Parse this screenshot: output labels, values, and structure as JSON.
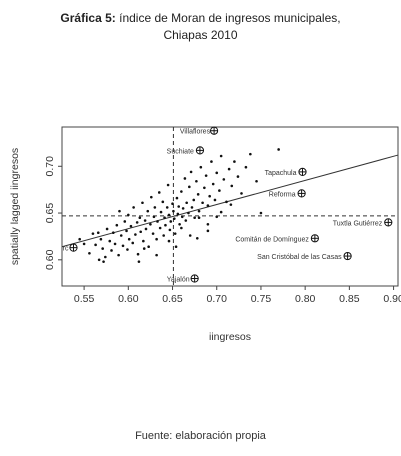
{
  "header": {
    "title_bold": "Gráfica 5:",
    "title_rest": " índice de Moran de ingresos municipales,",
    "title_line2": "Chiapas 2010"
  },
  "footer": {
    "source": "Fuente: elaboración propia"
  },
  "chart_data": {
    "type": "scatter",
    "xlabel": "iingresos",
    "ylabel": "spatially lagged iingresos",
    "xlim": [
      0.525,
      0.905
    ],
    "ylim": [
      0.572,
      0.742
    ],
    "x_ticks": [
      0.55,
      0.6,
      0.65,
      0.7,
      0.75,
      0.8,
      0.85,
      0.9
    ],
    "y_ticks": [
      0.6,
      0.65,
      0.7
    ],
    "x_tick_labels": [
      "0.55",
      "0.60",
      "0.65",
      "0.70",
      "0.75",
      "0.80",
      "0.85",
      "0.90"
    ],
    "y_tick_labels": [
      "0.60",
      "0.65",
      "0.70"
    ],
    "mean_x": 0.651,
    "mean_y": 0.647,
    "regression_line": {
      "x": [
        0.525,
        0.905
      ],
      "y": [
        0.614,
        0.712
      ]
    },
    "points": [
      [
        0.545,
        0.622
      ],
      [
        0.55,
        0.617
      ],
      [
        0.556,
        0.607
      ],
      [
        0.56,
        0.628
      ],
      [
        0.563,
        0.616
      ],
      [
        0.566,
        0.629
      ],
      [
        0.567,
        0.6
      ],
      [
        0.569,
        0.622
      ],
      [
        0.571,
        0.612
      ],
      [
        0.574,
        0.603
      ],
      [
        0.576,
        0.633
      ],
      [
        0.579,
        0.62
      ],
      [
        0.581,
        0.61
      ],
      [
        0.583,
        0.629
      ],
      [
        0.585,
        0.617
      ],
      [
        0.587,
        0.637
      ],
      [
        0.589,
        0.605
      ],
      [
        0.59,
        0.652
      ],
      [
        0.592,
        0.626
      ],
      [
        0.594,
        0.615
      ],
      [
        0.596,
        0.641
      ],
      [
        0.598,
        0.631
      ],
      [
        0.599,
        0.611
      ],
      [
        0.6,
        0.648
      ],
      [
        0.601,
        0.622
      ],
      [
        0.603,
        0.636
      ],
      [
        0.605,
        0.618
      ],
      [
        0.606,
        0.656
      ],
      [
        0.608,
        0.627
      ],
      [
        0.61,
        0.64
      ],
      [
        0.611,
        0.606
      ],
      [
        0.613,
        0.645
      ],
      [
        0.614,
        0.63
      ],
      [
        0.616,
        0.661
      ],
      [
        0.617,
        0.62
      ],
      [
        0.619,
        0.642
      ],
      [
        0.62,
        0.633
      ],
      [
        0.622,
        0.652
      ],
      [
        0.623,
        0.614
      ],
      [
        0.625,
        0.638
      ],
      [
        0.626,
        0.667
      ],
      [
        0.628,
        0.628
      ],
      [
        0.629,
        0.646
      ],
      [
        0.63,
        0.656
      ],
      [
        0.632,
        0.622
      ],
      [
        0.633,
        0.641
      ],
      [
        0.635,
        0.672
      ],
      [
        0.636,
        0.634
      ],
      [
        0.637,
        0.651
      ],
      [
        0.639,
        0.662
      ],
      [
        0.64,
        0.626
      ],
      [
        0.641,
        0.645
      ],
      [
        0.642,
        0.637
      ],
      [
        0.644,
        0.656
      ],
      [
        0.645,
        0.68
      ],
      [
        0.646,
        0.648
      ],
      [
        0.647,
        0.632
      ],
      [
        0.648,
        0.641
      ],
      [
        0.65,
        0.66
      ],
      [
        0.651,
        0.652
      ],
      [
        0.652,
        0.644
      ],
      [
        0.653,
        0.628
      ],
      [
        0.655,
        0.666
      ],
      [
        0.656,
        0.649
      ],
      [
        0.657,
        0.657
      ],
      [
        0.658,
        0.638
      ],
      [
        0.66,
        0.673
      ],
      [
        0.661,
        0.646
      ],
      [
        0.662,
        0.655
      ],
      [
        0.664,
        0.687
      ],
      [
        0.665,
        0.642
      ],
      [
        0.666,
        0.661
      ],
      [
        0.668,
        0.65
      ],
      [
        0.669,
        0.678
      ],
      [
        0.671,
        0.694
      ],
      [
        0.672,
        0.656
      ],
      [
        0.674,
        0.664
      ],
      [
        0.675,
        0.645
      ],
      [
        0.677,
        0.684
      ],
      [
        0.679,
        0.67
      ],
      [
        0.68,
        0.652
      ],
      [
        0.682,
        0.699
      ],
      [
        0.684,
        0.661
      ],
      [
        0.686,
        0.677
      ],
      [
        0.688,
        0.69
      ],
      [
        0.69,
        0.658
      ],
      [
        0.692,
        0.668
      ],
      [
        0.694,
        0.705
      ],
      [
        0.696,
        0.681
      ],
      [
        0.698,
        0.664
      ],
      [
        0.7,
        0.693
      ],
      [
        0.703,
        0.674
      ],
      [
        0.705,
        0.711
      ],
      [
        0.708,
        0.686
      ],
      [
        0.711,
        0.662
      ],
      [
        0.714,
        0.697
      ],
      [
        0.717,
        0.679
      ],
      [
        0.72,
        0.705
      ],
      [
        0.724,
        0.689
      ],
      [
        0.728,
        0.671
      ],
      [
        0.733,
        0.699
      ],
      [
        0.738,
        0.713
      ],
      [
        0.745,
        0.684
      ],
      [
        0.75,
        0.65
      ],
      [
        0.77,
        0.718
      ],
      [
        0.68,
        0.645
      ],
      [
        0.69,
        0.638
      ],
      [
        0.67,
        0.626
      ],
      [
        0.66,
        0.634
      ],
      [
        0.7,
        0.646
      ],
      [
        0.705,
        0.651
      ],
      [
        0.716,
        0.659
      ],
      [
        0.612,
        0.598
      ],
      [
        0.632,
        0.605
      ],
      [
        0.618,
        0.612
      ],
      [
        0.646,
        0.62
      ],
      [
        0.654,
        0.614
      ],
      [
        0.678,
        0.623
      ],
      [
        0.69,
        0.631
      ],
      [
        0.572,
        0.598
      ]
    ],
    "annotated": [
      {
        "label": "Villaflores",
        "x": 0.697,
        "y": 0.738,
        "anchor": "end",
        "dx": -4,
        "dy": 3
      },
      {
        "label": "Suchiate",
        "x": 0.681,
        "y": 0.717,
        "anchor": "end",
        "dx": -6,
        "dy": 3
      },
      {
        "label": "Tapachula",
        "x": 0.797,
        "y": 0.694,
        "anchor": "end",
        "dx": -6,
        "dy": 3
      },
      {
        "label": "Reforma",
        "x": 0.796,
        "y": 0.671,
        "anchor": "end",
        "dx": -6,
        "dy": 3
      },
      {
        "label": "Tuxtla Gutiérrez",
        "x": 0.894,
        "y": 0.64,
        "anchor": "end",
        "dx": -6,
        "dy": 3
      },
      {
        "label": "Comitán de Domínguez",
        "x": 0.811,
        "y": 0.623,
        "anchor": "end",
        "dx": -6,
        "dy": 3
      },
      {
        "label": "San Cristóbal de las Casas",
        "x": 0.848,
        "y": 0.604,
        "anchor": "end",
        "dx": -6,
        "dy": 3
      },
      {
        "label": "Yajalón",
        "x": 0.675,
        "y": 0.58,
        "anchor": "end",
        "dx": -5,
        "dy": 3
      },
      {
        "label": "rc",
        "x": 0.538,
        "y": 0.613,
        "anchor": "end",
        "dx": -5,
        "dy": 3
      }
    ]
  }
}
